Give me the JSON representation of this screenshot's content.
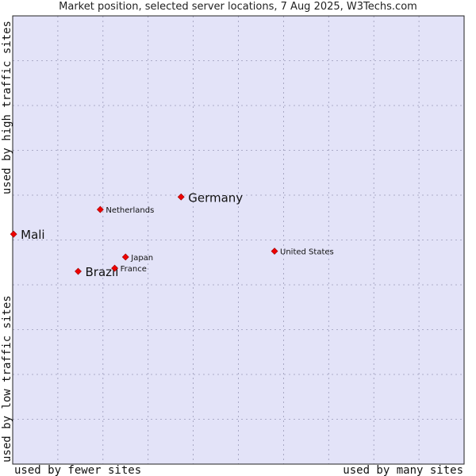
{
  "chart_data": {
    "type": "scatter",
    "title": "Market position, selected server locations, 7 Aug 2025, W3Techs.com",
    "xlabel_left": "used by fewer sites",
    "xlabel_right": "used by many sites",
    "ylabel_bottom": "used by low traffic sites",
    "ylabel_top": "used by high traffic sites",
    "xlim": [
      0,
      10
    ],
    "ylim": [
      0,
      10
    ],
    "grid": true,
    "background_color": "#e3e3f8",
    "marker_color": "#ee0000",
    "points": [
      {
        "name": "Mali",
        "x": 0.02,
        "y": 5.13,
        "size": "large"
      },
      {
        "name": "Netherlands",
        "x": 1.94,
        "y": 5.68,
        "size": "small"
      },
      {
        "name": "Germany",
        "x": 3.73,
        "y": 5.96,
        "size": "large"
      },
      {
        "name": "Brazil",
        "x": 1.45,
        "y": 4.3,
        "size": "large"
      },
      {
        "name": "France",
        "x": 2.26,
        "y": 4.37,
        "size": "small"
      },
      {
        "name": "Japan",
        "x": 2.5,
        "y": 4.62,
        "size": "small"
      },
      {
        "name": "United States",
        "x": 5.8,
        "y": 4.75,
        "size": "small"
      }
    ]
  }
}
